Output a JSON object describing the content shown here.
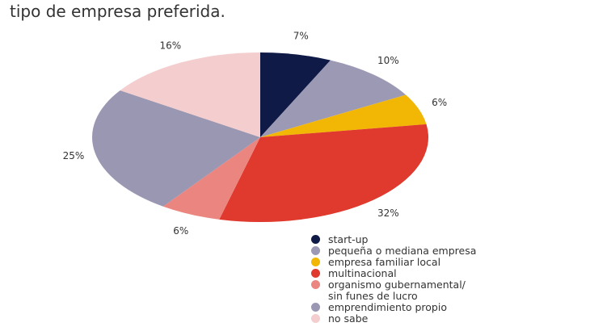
{
  "chart_data": {
    "type": "pie",
    "title": "tipo de empresa preferida.",
    "categories": [
      "start-up",
      "pequeña o mediana empresa",
      "empresa familiar local",
      "multinacional",
      "organismo gubernamental/\nsin funes de lucro",
      "emprendimiento propio",
      "no sabe"
    ],
    "values": [
      7,
      10,
      6,
      32,
      6,
      25,
      16
    ],
    "value_labels": [
      "7%",
      "10%",
      "6%",
      "32%",
      "6%",
      "25%",
      "16%"
    ],
    "colors": [
      "#101a46",
      "#9c99b5",
      "#f2b705",
      "#e0392d",
      "#ea8580",
      "#9a97b2",
      "#f4cdce"
    ]
  }
}
